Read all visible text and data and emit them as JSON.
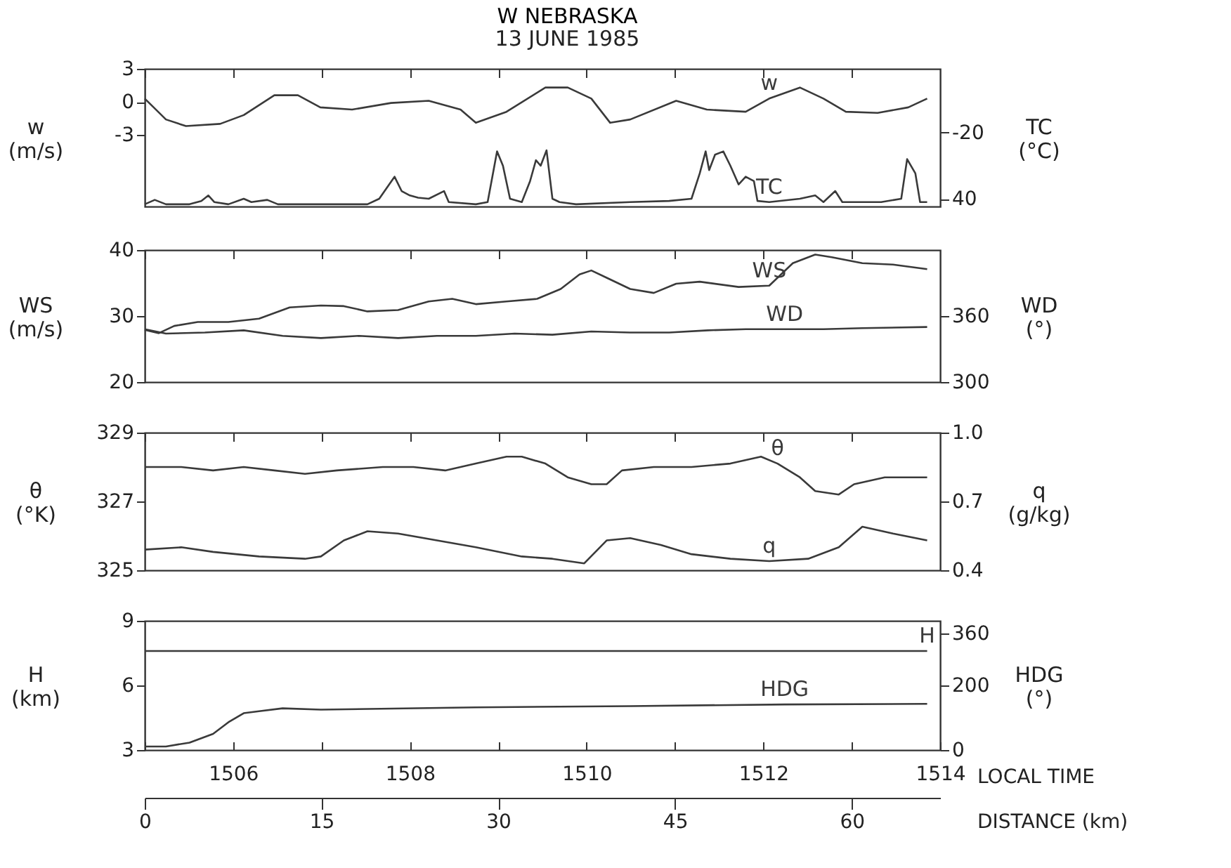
{
  "chart_data": [
    {
      "type": "line",
      "title": "W NEBRASKA",
      "subtitle": "13 JUNE 1985",
      "ylabel": "w (m/s)",
      "y2label": "TC (°C)",
      "xlim": [
        0,
        67.5
      ],
      "xticks": [
        0,
        {
          "value": 7.5,
          "label": null
        },
        15,
        {
          "value": 22.5,
          "label": null
        },
        30,
        {
          "value": 37.5,
          "label": null
        },
        45,
        {
          "value": 52.5,
          "label": null
        },
        60
      ],
      "ylim": [
        -9.5,
        3
      ],
      "yticks": [
        -3,
        0,
        3
      ],
      "y2lim": [
        47,
        -78
      ],
      "y2ticks": [
        -20,
        40
      ],
      "tick_labels": "y",
      "grid": false,
      "series": [
        {
          "name": "w",
          "color": "#3a3a3a",
          "x": [
            0,
            1.8,
            3.5,
            6.4,
            8.4,
            11.0,
            13.0,
            14.9,
            17.6,
            20.9,
            24.1,
            26.8,
            28.1,
            30.7,
            34.0,
            35.9,
            37.9,
            39.5,
            41.2,
            45.1,
            47.7,
            51.0,
            53.0,
            55.6,
            57.6,
            59.5,
            62.2,
            64.8,
            66.4
          ],
          "values": [
            0.3,
            -1.6,
            -2.2,
            -2.0,
            -1.2,
            0.6,
            0.6,
            -0.5,
            -0.7,
            -0.1,
            0.1,
            -0.7,
            -1.9,
            -0.9,
            1.3,
            1.3,
            0.3,
            -1.9,
            -1.6,
            0.1,
            -0.7,
            -0.9,
            0.3,
            1.3,
            0.3,
            -0.9,
            -1.0,
            -0.5,
            0.3
          ]
        },
        {
          "name": "TC",
          "color": "#3a3a3a",
          "axis": "y2",
          "x": [
            0,
            0.85,
            1.8,
            3.8,
            4.8,
            5.4,
            5.9,
            7.1,
            8.4,
            9.05,
            10.4,
            11.3,
            18.9,
            19.9,
            21.2,
            21.8,
            22.5,
            23.2,
            24.1,
            25.4,
            25.8,
            28.1,
            29.1,
            29.5,
            29.9,
            30.4,
            31.0,
            32.0,
            32.7,
            33.2,
            33.6,
            34.1,
            34.6,
            35.2,
            36.6,
            41.2,
            44.5,
            46.4,
            47.1,
            47.6,
            47.9,
            48.4,
            49.1,
            49.7,
            50.4,
            51.0,
            51.7,
            52.0,
            53.0,
            55.6,
            56.9,
            57.6,
            58.6,
            59.2,
            60.9,
            62.5,
            64.2,
            64.7,
            65.4,
            65.8,
            66.4
          ],
          "values": [
            45,
            41,
            45,
            45,
            42,
            37,
            43,
            45,
            40,
            43,
            41,
            45,
            45,
            40,
            20,
            33,
            37,
            39,
            40,
            33,
            43,
            45,
            43,
            20,
            -3,
            10,
            40,
            43,
            24,
            5,
            10,
            -4,
            40,
            43,
            45,
            43,
            42,
            40,
            17,
            -3,
            14,
            0,
            -3,
            10,
            27,
            20,
            24,
            42,
            43,
            40,
            37,
            43,
            33,
            43,
            43,
            43,
            40,
            4,
            17,
            43,
            43
          ]
        }
      ]
    },
    {
      "type": "line",
      "ylabel": "WS (m/s)",
      "y2label": "WD (°)",
      "xlim": [
        0,
        67.5
      ],
      "xticks": [
        0,
        {
          "value": 7.5,
          "label": null
        },
        15,
        {
          "value": 22.5,
          "label": null
        },
        30,
        {
          "value": 37.5,
          "label": null
        },
        45,
        {
          "value": 52.5,
          "label": null
        },
        60
      ],
      "ylim": [
        20,
        40
      ],
      "yticks": [
        20,
        30,
        40
      ],
      "y2lim": [
        300,
        420
      ],
      "y2ticks": [
        300,
        360
      ],
      "tick_labels": "y",
      "grid": false,
      "series": [
        {
          "name": "WS",
          "color": "#3a3a3a",
          "x": [
            0,
            1.2,
            2.5,
            4.5,
            7.1,
            9.7,
            12.3,
            14.95,
            16.9,
            18.9,
            21.5,
            24.1,
            26.1,
            28.1,
            30.7,
            33.3,
            35.3,
            36.9,
            37.9,
            39.2,
            41.2,
            43.2,
            45.1,
            47.1,
            50.4,
            53.0,
            55.0,
            56.9,
            58.3,
            60.9,
            63.5,
            66.4
          ],
          "values": [
            27.9,
            27.4,
            28.5,
            29.1,
            29.1,
            29.6,
            31.3,
            31.6,
            31.5,
            30.7,
            30.9,
            32.2,
            32.6,
            31.8,
            32.2,
            32.6,
            34.1,
            36.3,
            36.9,
            35.8,
            34.1,
            33.5,
            34.9,
            35.2,
            34.4,
            34.6,
            38.0,
            39.3,
            38.9,
            38.0,
            37.8,
            37.1
          ]
        },
        {
          "name": "WD",
          "color": "#3a3a3a",
          "axis": "y2",
          "x": [
            0,
            1.8,
            5.1,
            8.4,
            11.7,
            14.95,
            18.2,
            21.5,
            24.8,
            28.1,
            31.4,
            34.6,
            37.9,
            41.2,
            44.5,
            47.8,
            51.0,
            54.3,
            57.6,
            60.9,
            66.4
          ],
          "values": [
            348,
            344,
            345,
            347,
            342,
            340,
            342,
            340,
            342,
            342,
            344,
            343,
            346,
            345,
            345,
            347,
            348,
            348,
            348,
            349,
            350
          ]
        }
      ]
    },
    {
      "type": "line",
      "ylabel": "θ (°K)",
      "y2label": "q (g/kg)",
      "xlim": [
        0,
        67.5
      ],
      "xticks": [
        0,
        {
          "value": 7.5,
          "label": null
        },
        15,
        {
          "value": 22.5,
          "label": null
        },
        30,
        {
          "value": 37.5,
          "label": null
        },
        45,
        {
          "value": 52.5,
          "label": null
        },
        60
      ],
      "ylim": [
        325,
        329
      ],
      "yticks": [
        325,
        327,
        329
      ],
      "y2lim": [
        0.4,
        1.0
      ],
      "y2ticks": [
        0.4,
        0.7,
        {
          "value": 1,
          "label": "1.0"
        }
      ],
      "tick_labels": "y",
      "grid": false,
      "series": [
        {
          "name": "θ",
          "color": "#3a3a3a",
          "x": [
            0,
            3.1,
            5.8,
            8.4,
            11.0,
            13.6,
            16.3,
            20.2,
            22.8,
            25.5,
            28.1,
            30.7,
            32.0,
            34.0,
            35.9,
            37.9,
            39.2,
            40.5,
            43.2,
            46.4,
            49.7,
            52.3,
            53.7,
            55.6,
            56.9,
            58.9,
            60.2,
            62.8,
            66.4
          ],
          "values": [
            328.0,
            328.0,
            327.9,
            328.0,
            327.9,
            327.8,
            327.9,
            328.0,
            328.0,
            327.9,
            328.1,
            328.3,
            328.3,
            328.1,
            327.7,
            327.5,
            327.5,
            327.9,
            328.0,
            328.0,
            328.1,
            328.3,
            328.1,
            327.7,
            327.3,
            327.2,
            327.5,
            327.7,
            327.7
          ]
        },
        {
          "name": "q",
          "color": "#3a3a3a",
          "axis": "y2",
          "x": [
            0,
            3.1,
            5.8,
            9.7,
            13.6,
            14.95,
            16.9,
            18.9,
            21.5,
            24.8,
            28.1,
            32.0,
            34.6,
            37.3,
            39.2,
            41.2,
            43.8,
            46.4,
            49.7,
            53.0,
            56.3,
            58.9,
            60.9,
            63.5,
            66.4
          ],
          "values": [
            0.49,
            0.5,
            0.48,
            0.46,
            0.45,
            0.46,
            0.53,
            0.57,
            0.56,
            0.53,
            0.5,
            0.46,
            0.45,
            0.43,
            0.53,
            0.54,
            0.51,
            0.47,
            0.45,
            0.44,
            0.45,
            0.5,
            0.59,
            0.56,
            0.53
          ]
        }
      ]
    },
    {
      "type": "line",
      "ylabel": "H (km)",
      "y2label": "HDG (°)",
      "xlabel": "DISTANCE (km)",
      "x2label": "LOCAL TIME",
      "xlim": [
        0,
        67.5
      ],
      "xticks": [
        0,
        15,
        30,
        45,
        60
      ],
      "x2lim": [
        1505,
        1514
      ],
      "x2ticks": [
        {
          "value": 1505,
          "label": null
        },
        1506,
        {
          "value": 1507,
          "label": null
        },
        1508,
        {
          "value": 1509,
          "label": null
        },
        1510,
        {
          "value": 1511,
          "label": null
        },
        1512,
        {
          "value": 1513,
          "label": null
        },
        1514
      ],
      "ylim": [
        3,
        9
      ],
      "yticks": [
        3,
        6,
        9
      ],
      "y2lim": [
        0,
        400
      ],
      "y2ticks": [
        0,
        200,
        360
      ],
      "grid": false,
      "series": [
        {
          "name": "H",
          "color": "#3a3a3a",
          "x": [
            0,
            66.4
          ],
          "values": [
            7.6,
            7.6
          ]
        },
        {
          "name": "HDG",
          "color": "#3a3a3a",
          "axis": "y2",
          "x": [
            0,
            1.8,
            3.8,
            5.8,
            7.1,
            8.4,
            9.7,
            11.7,
            14.95,
            28.1,
            41.2,
            54.3,
            66.4
          ],
          "values": [
            11,
            11,
            23,
            50,
            86,
            114,
            120,
            129,
            125,
            132,
            136,
            141,
            143
          ]
        }
      ]
    }
  ]
}
